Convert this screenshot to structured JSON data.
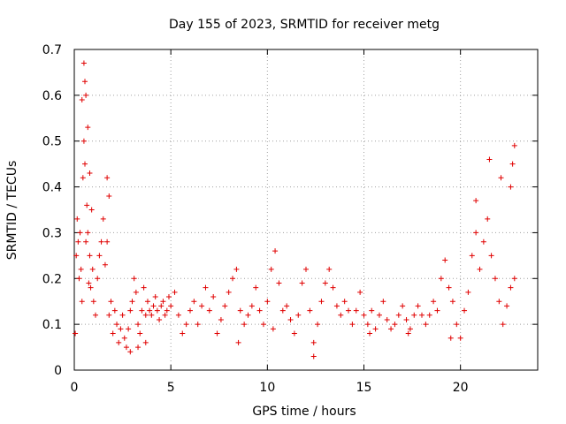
{
  "chart_data": {
    "type": "scatter",
    "title": "Day 155 of 2023, SRMTID for receiver metg",
    "xlabel": "GPS time / hours",
    "ylabel": "SRMTID / TECUs",
    "xlim": [
      0,
      24
    ],
    "ylim": [
      0,
      0.7
    ],
    "xticks": [
      0,
      5,
      10,
      15,
      20
    ],
    "xtick_labels": [
      "0",
      "5",
      "10",
      "15",
      "20"
    ],
    "yticks": [
      0,
      0.1,
      0.2,
      0.3,
      0.4,
      0.5,
      0.6,
      0.7
    ],
    "ytick_labels": [
      "0",
      "0.1",
      "0.2",
      "0.3",
      "0.4",
      "0.5",
      "0.6",
      "0.7"
    ],
    "grid": true,
    "marker": "+",
    "color": "#e00000",
    "series": [
      {
        "name": "SRMTID",
        "x": [
          0.05,
          0.1,
          0.15,
          0.2,
          0.25,
          0.3,
          0.35,
          0.4,
          0.45,
          0.5,
          0.55,
          0.6,
          0.65,
          0.7,
          0.75,
          0.8,
          0.85,
          0.9,
          0.95,
          1.0,
          1.1,
          1.2,
          1.3,
          1.4,
          1.5,
          1.6,
          1.7,
          1.8,
          1.9,
          2.0,
          2.1,
          2.2,
          2.3,
          2.4,
          2.5,
          2.6,
          2.7,
          2.8,
          2.9,
          3.0,
          3.1,
          3.2,
          3.3,
          3.4,
          3.5,
          3.6,
          3.7,
          3.8,
          3.9,
          4.0,
          4.1,
          4.2,
          4.3,
          4.4,
          4.5,
          4.6,
          4.7,
          4.8,
          4.9,
          5.0,
          5.2,
          5.4,
          5.6,
          5.8,
          6.0,
          6.2,
          6.4,
          6.6,
          6.8,
          7.0,
          7.2,
          7.4,
          7.6,
          7.8,
          8.0,
          8.2,
          8.4,
          8.6,
          8.8,
          9.0,
          9.2,
          9.4,
          9.6,
          9.8,
          10.0,
          10.2,
          10.4,
          10.6,
          10.8,
          11.0,
          11.2,
          11.4,
          11.6,
          11.8,
          12.0,
          12.2,
          12.4,
          12.6,
          12.8,
          13.0,
          13.2,
          13.4,
          13.6,
          13.8,
          14.0,
          14.2,
          14.4,
          14.6,
          14.8,
          15.0,
          15.2,
          15.4,
          15.6,
          15.8,
          16.0,
          16.2,
          16.4,
          16.6,
          16.8,
          17.0,
          17.2,
          17.4,
          17.6,
          17.8,
          18.0,
          18.2,
          18.4,
          18.6,
          18.8,
          19.0,
          19.2,
          19.4,
          19.6,
          19.8,
          20.0,
          20.2,
          20.4,
          20.6,
          20.8,
          21.0,
          21.2,
          21.4,
          21.6,
          21.8,
          22.0,
          22.2,
          22.4,
          22.6,
          22.8,
          0.4,
          0.5,
          0.55,
          0.6,
          0.7,
          0.8,
          1.7,
          1.8,
          20.8,
          21.5,
          22.1,
          22.6,
          22.7,
          22.8,
          2.9,
          3.3,
          3.7,
          8.5,
          10.3,
          12.4,
          15.3,
          17.3,
          19.5
        ],
        "y": [
          0.08,
          0.25,
          0.33,
          0.28,
          0.2,
          0.3,
          0.22,
          0.15,
          0.42,
          0.5,
          0.45,
          0.28,
          0.36,
          0.3,
          0.19,
          0.25,
          0.18,
          0.35,
          0.22,
          0.15,
          0.12,
          0.2,
          0.25,
          0.28,
          0.33,
          0.23,
          0.28,
          0.12,
          0.15,
          0.08,
          0.13,
          0.1,
          0.06,
          0.09,
          0.12,
          0.07,
          0.05,
          0.09,
          0.13,
          0.15,
          0.2,
          0.17,
          0.1,
          0.08,
          0.13,
          0.18,
          0.12,
          0.15,
          0.13,
          0.12,
          0.14,
          0.16,
          0.13,
          0.11,
          0.14,
          0.15,
          0.12,
          0.13,
          0.16,
          0.14,
          0.17,
          0.12,
          0.08,
          0.1,
          0.13,
          0.15,
          0.1,
          0.14,
          0.18,
          0.13,
          0.16,
          0.08,
          0.11,
          0.14,
          0.17,
          0.2,
          0.22,
          0.13,
          0.1,
          0.12,
          0.14,
          0.18,
          0.13,
          0.1,
          0.15,
          0.22,
          0.26,
          0.19,
          0.13,
          0.14,
          0.11,
          0.08,
          0.12,
          0.19,
          0.22,
          0.13,
          0.06,
          0.1,
          0.15,
          0.19,
          0.22,
          0.18,
          0.14,
          0.12,
          0.15,
          0.13,
          0.1,
          0.13,
          0.17,
          0.12,
          0.1,
          0.13,
          0.09,
          0.12,
          0.15,
          0.11,
          0.09,
          0.1,
          0.12,
          0.14,
          0.11,
          0.09,
          0.12,
          0.14,
          0.12,
          0.1,
          0.12,
          0.15,
          0.13,
          0.2,
          0.24,
          0.18,
          0.15,
          0.1,
          0.07,
          0.13,
          0.17,
          0.25,
          0.3,
          0.22,
          0.28,
          0.33,
          0.25,
          0.2,
          0.15,
          0.1,
          0.14,
          0.18,
          0.2,
          0.59,
          0.67,
          0.63,
          0.6,
          0.53,
          0.43,
          0.42,
          0.38,
          0.37,
          0.46,
          0.42,
          0.4,
          0.45,
          0.49,
          0.04,
          0.05,
          0.06,
          0.06,
          0.09,
          0.03,
          0.08,
          0.08,
          0.07
        ]
      }
    ]
  }
}
